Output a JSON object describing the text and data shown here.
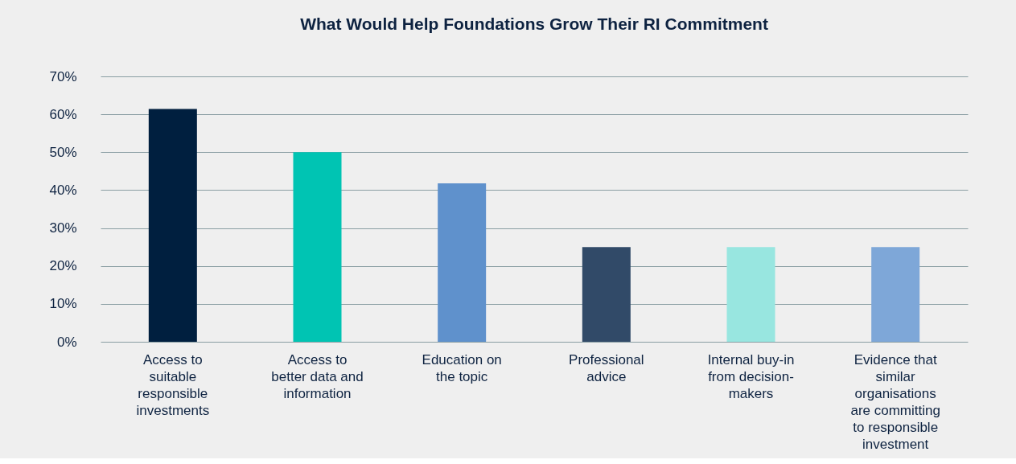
{
  "chart_data": {
    "type": "bar",
    "title": "What Would Help Foundations Grow Their RI Commitment",
    "categories": [
      "Access to suitable responsible investments",
      "Access to better data and information",
      "Education on the topic",
      "Professional advice",
      "Internal buy-in from decision-makers",
      "Evidence that similar organisations are committing to responsible investment"
    ],
    "values": [
      61.4,
      50,
      41.8,
      25,
      25,
      25
    ],
    "colors": [
      "#001f3f",
      "#00c4b3",
      "#5f91cc",
      "#314a68",
      "#98e6e0",
      "#7ea7d8"
    ],
    "ylim": [
      0,
      70
    ],
    "yticks": [
      {
        "value": 0,
        "label": "0%"
      },
      {
        "value": 10,
        "label": "10%"
      },
      {
        "value": 20,
        "label": "20%"
      },
      {
        "value": 30,
        "label": "30%"
      },
      {
        "value": 40,
        "label": "40%"
      },
      {
        "value": 50,
        "label": "50%"
      },
      {
        "value": 60,
        "label": "60%"
      },
      {
        "value": 70,
        "label": "70%"
      }
    ],
    "grid": "y"
  }
}
